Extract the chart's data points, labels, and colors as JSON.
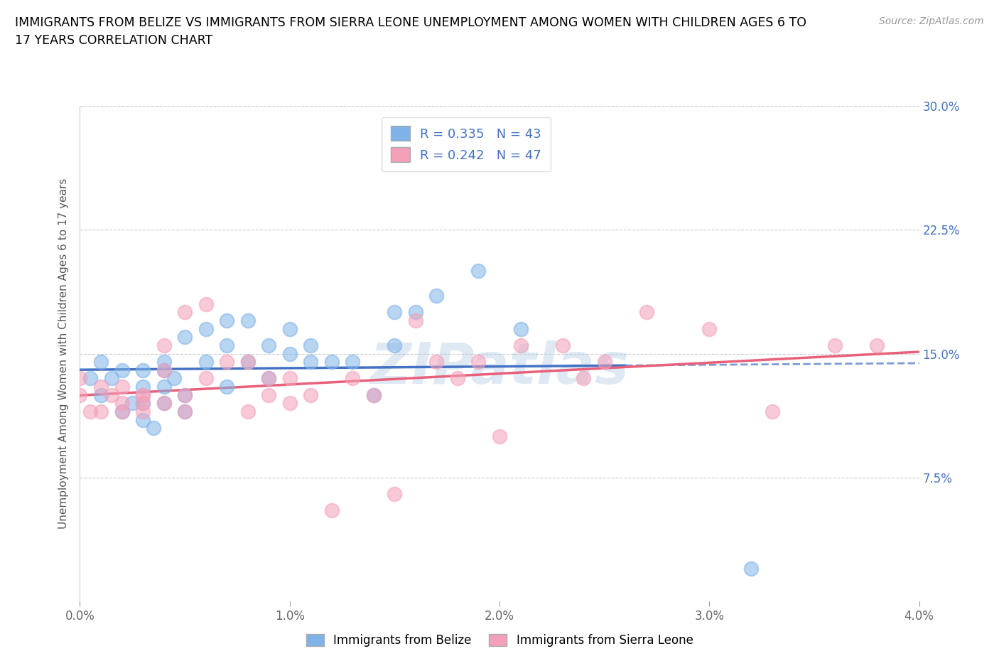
{
  "title": "IMMIGRANTS FROM BELIZE VS IMMIGRANTS FROM SIERRA LEONE UNEMPLOYMENT AMONG WOMEN WITH CHILDREN AGES 6 TO\n17 YEARS CORRELATION CHART",
  "source": "Source: ZipAtlas.com",
  "ylabel": "Unemployment Among Women with Children Ages 6 to 17 years",
  "xlim": [
    0.0,
    0.04
  ],
  "ylim": [
    0.0,
    0.3
  ],
  "yticks": [
    0.0,
    0.075,
    0.15,
    0.225,
    0.3
  ],
  "ytick_labels_right": [
    "",
    "7.5%",
    "15.0%",
    "22.5%",
    "30.0%"
  ],
  "xticks": [
    0.0,
    0.01,
    0.02,
    0.03,
    0.04
  ],
  "xtick_labels": [
    "0.0%",
    "1.0%",
    "2.0%",
    "3.0%",
    "4.0%"
  ],
  "belize_color": "#7fb3e8",
  "sierra_leone_color": "#f4a0b8",
  "belize_line_color": "#4472c4",
  "sierra_leone_line_color": "#e8607a",
  "R_belize": 0.335,
  "N_belize": 43,
  "R_sierra": 0.242,
  "N_sierra": 47,
  "legend_text_color": "#4472c4",
  "right_axis_color": "#4472c4",
  "belize_scatter_x": [
    0.0005,
    0.001,
    0.001,
    0.0015,
    0.002,
    0.002,
    0.0025,
    0.003,
    0.003,
    0.003,
    0.003,
    0.0035,
    0.004,
    0.004,
    0.004,
    0.004,
    0.0045,
    0.005,
    0.005,
    0.005,
    0.006,
    0.006,
    0.007,
    0.007,
    0.007,
    0.008,
    0.008,
    0.009,
    0.009,
    0.01,
    0.01,
    0.011,
    0.011,
    0.012,
    0.013,
    0.014,
    0.015,
    0.015,
    0.016,
    0.017,
    0.019,
    0.021,
    0.032
  ],
  "belize_scatter_y": [
    0.135,
    0.145,
    0.125,
    0.135,
    0.14,
    0.115,
    0.12,
    0.14,
    0.13,
    0.12,
    0.11,
    0.105,
    0.13,
    0.145,
    0.14,
    0.12,
    0.135,
    0.125,
    0.16,
    0.115,
    0.165,
    0.145,
    0.17,
    0.155,
    0.13,
    0.145,
    0.17,
    0.135,
    0.155,
    0.15,
    0.165,
    0.145,
    0.155,
    0.145,
    0.145,
    0.125,
    0.155,
    0.175,
    0.175,
    0.185,
    0.2,
    0.165,
    0.02
  ],
  "sierra_scatter_x": [
    0.0,
    0.0,
    0.0005,
    0.001,
    0.001,
    0.0015,
    0.002,
    0.002,
    0.002,
    0.003,
    0.003,
    0.003,
    0.003,
    0.004,
    0.004,
    0.004,
    0.005,
    0.005,
    0.005,
    0.006,
    0.006,
    0.007,
    0.008,
    0.008,
    0.009,
    0.009,
    0.01,
    0.01,
    0.011,
    0.012,
    0.013,
    0.014,
    0.015,
    0.016,
    0.017,
    0.018,
    0.019,
    0.02,
    0.021,
    0.023,
    0.024,
    0.025,
    0.027,
    0.03,
    0.033,
    0.036,
    0.038
  ],
  "sierra_scatter_y": [
    0.135,
    0.125,
    0.115,
    0.13,
    0.115,
    0.125,
    0.13,
    0.12,
    0.115,
    0.125,
    0.115,
    0.12,
    0.125,
    0.12,
    0.14,
    0.155,
    0.175,
    0.115,
    0.125,
    0.135,
    0.18,
    0.145,
    0.145,
    0.115,
    0.125,
    0.135,
    0.135,
    0.12,
    0.125,
    0.055,
    0.135,
    0.125,
    0.065,
    0.17,
    0.145,
    0.135,
    0.145,
    0.1,
    0.155,
    0.155,
    0.135,
    0.145,
    0.175,
    0.165,
    0.115,
    0.155,
    0.155
  ]
}
